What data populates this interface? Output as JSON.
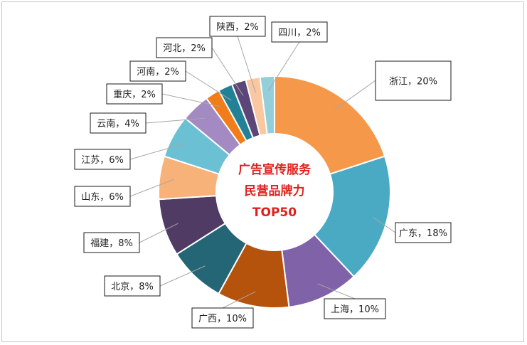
{
  "chart_data": {
    "type": "pie",
    "donut": true,
    "center_title": [
      "广告宣传服务",
      "民营品牌力",
      "TOP50"
    ],
    "slices": [
      {
        "label": "浙江",
        "value": 20,
        "color": "#f5984a"
      },
      {
        "label": "广东",
        "value": 18,
        "color": "#4aaac4"
      },
      {
        "label": "上海",
        "value": 10,
        "color": "#7f62a8"
      },
      {
        "label": "广西",
        "value": 10,
        "color": "#b5520c"
      },
      {
        "label": "北京",
        "value": 8,
        "color": "#246675"
      },
      {
        "label": "福建",
        "value": 8,
        "color": "#4f3b63"
      },
      {
        "label": "山东",
        "value": 6,
        "color": "#f7b27a"
      },
      {
        "label": "江苏",
        "value": 6,
        "color": "#6cc0d4"
      },
      {
        "label": "云南",
        "value": 4,
        "color": "#a48ac3"
      },
      {
        "label": "重庆",
        "value": 2,
        "color": "#f07c1a"
      },
      {
        "label": "河南",
        "value": 2,
        "color": "#238197"
      },
      {
        "label": "河北",
        "value": 2,
        "color": "#5c4678"
      },
      {
        "label": "陕西",
        "value": 2,
        "color": "#f9c7a0"
      },
      {
        "label": "四川",
        "value": 2,
        "color": "#93cfdb"
      }
    ],
    "label_texts": [
      "浙江，20%",
      "广东，18%",
      "上海，10%",
      "广西，10%",
      "北京，8%",
      "福建，8%",
      "山东，6%",
      "江苏，6%",
      "云南，4%",
      "重庆，2%",
      "河南，2%",
      "河北，2%",
      "陕西，2%",
      "四川，2%"
    ],
    "legend": "none"
  }
}
